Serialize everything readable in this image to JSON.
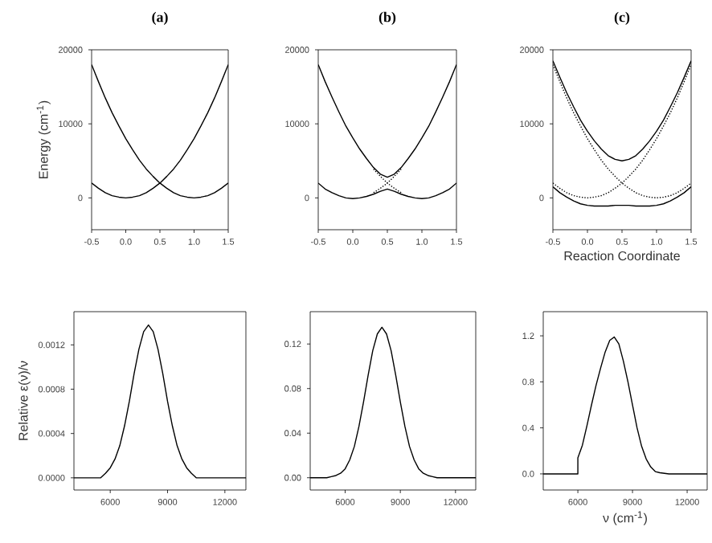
{
  "chart_data": [
    {
      "type": "line",
      "title": "(a)",
      "ylabel": "Energy (cm$^{-1}$)",
      "xlim": [
        -0.5,
        1.5
      ],
      "ylim": [
        -4300,
        20000
      ],
      "xticks": [
        {
          "value": -0.5,
          "label": "-0.5"
        },
        {
          "value": 0,
          "label": "0.0"
        },
        {
          "value": 0.5,
          "label": "0.5"
        },
        {
          "value": 1,
          "label": "1.0"
        },
        {
          "value": 1.5,
          "label": "1.5"
        }
      ],
      "yticks": [
        0,
        10000,
        20000
      ],
      "series": [
        {
          "color": "#000000",
          "line_style": "solid",
          "x": [
            -0.5,
            -0.4,
            -0.3,
            -0.2,
            -0.1,
            0,
            0.1,
            0.2,
            0.3,
            0.4,
            0.5,
            0.6,
            0.7,
            0.8,
            0.9,
            1.0,
            1.1,
            1.2,
            1.3,
            1.4,
            1.5
          ],
          "values": [
            2000,
            1300,
            700,
            300,
            100,
            0,
            100,
            300,
            700,
            1300,
            2000,
            2900,
            3900,
            5100,
            6500,
            8000,
            9700,
            11500,
            13500,
            15700,
            18000
          ]
        },
        {
          "color": "#000000",
          "line_style": "solid",
          "x": [
            -0.5,
            -0.4,
            -0.3,
            -0.2,
            -0.1,
            0,
            0.1,
            0.2,
            0.3,
            0.4,
            0.5,
            0.6,
            0.7,
            0.8,
            0.9,
            1.0,
            1.1,
            1.2,
            1.3,
            1.4,
            1.5
          ],
          "values": [
            18000,
            15700,
            13500,
            11500,
            9700,
            8000,
            6500,
            5100,
            3900,
            2900,
            2000,
            1300,
            700,
            300,
            100,
            0,
            100,
            300,
            700,
            1300,
            2000
          ]
        }
      ]
    },
    {
      "type": "line",
      "title": "(b)",
      "xlim": [
        -0.5,
        1.5
      ],
      "ylim": [
        -4300,
        20000
      ],
      "xticks": [
        {
          "value": -0.5,
          "label": "-0.5"
        },
        {
          "value": 0,
          "label": "0.0"
        },
        {
          "value": 0.5,
          "label": "0.5"
        },
        {
          "value": 1,
          "label": "1.0"
        },
        {
          "value": 1.5,
          "label": "1.5"
        }
      ],
      "yticks": [
        0,
        10000,
        20000
      ],
      "series": [
        {
          "color": "#000000",
          "line_style": "solid",
          "x": [
            -0.5,
            -0.4,
            -0.3,
            -0.2,
            -0.1,
            0,
            0.1,
            0.2,
            0.3,
            0.4,
            0.5,
            0.6,
            0.7,
            0.8,
            0.9,
            1.0,
            1.1,
            1.2,
            1.3,
            1.4,
            1.5
          ],
          "values": [
            2000,
            1200,
            700,
            300,
            0,
            -100,
            0,
            200,
            500,
            900,
            1200,
            900,
            500,
            200,
            0,
            -100,
            0,
            300,
            700,
            1200,
            2000
          ]
        },
        {
          "color": "#000000",
          "line_style": "solid",
          "x": [
            -0.5,
            -0.4,
            -0.3,
            -0.2,
            -0.1,
            0,
            0.1,
            0.2,
            0.3,
            0.4,
            0.5,
            0.6,
            0.7,
            0.8,
            0.9,
            1.0,
            1.1,
            1.2,
            1.3,
            1.4,
            1.5
          ],
          "values": [
            18000,
            15700,
            13600,
            11600,
            9700,
            8100,
            6600,
            5300,
            4100,
            3200,
            2800,
            3200,
            4100,
            5300,
            6600,
            8100,
            9700,
            11600,
            13600,
            15700,
            18000
          ]
        },
        {
          "color": "#000000",
          "line_style": "dotted",
          "x": [
            0.3,
            0.4,
            0.5,
            0.6,
            0.7
          ],
          "values": [
            700,
            1300,
            2000,
            2900,
            3900
          ]
        },
        {
          "color": "#000000",
          "line_style": "dotted",
          "x": [
            0.3,
            0.4,
            0.5,
            0.6,
            0.7
          ],
          "values": [
            3900,
            2900,
            2000,
            1300,
            700
          ]
        }
      ]
    },
    {
      "type": "line",
      "title": "(c)",
      "xlabel": "Reaction Coordinate",
      "xlim": [
        -0.5,
        1.5
      ],
      "ylim": [
        -4300,
        20000
      ],
      "xticks": [
        {
          "value": -0.5,
          "label": "-0.5"
        },
        {
          "value": 0,
          "label": "0.0"
        },
        {
          "value": 0.5,
          "label": "0.5"
        },
        {
          "value": 1,
          "label": "1.0"
        },
        {
          "value": 1.5,
          "label": "1.5"
        }
      ],
      "yticks": [
        0,
        10000,
        20000
      ],
      "series": [
        {
          "color": "#000000",
          "line_style": "dotted",
          "x": [
            -0.5,
            -0.4,
            -0.3,
            -0.2,
            -0.1,
            0,
            0.1,
            0.2,
            0.3,
            0.4,
            0.5,
            0.6,
            0.7,
            0.8,
            0.9,
            1.0,
            1.1,
            1.2,
            1.3,
            1.4,
            1.5
          ],
          "values": [
            2000,
            1300,
            700,
            300,
            100,
            0,
            100,
            300,
            700,
            1300,
            2000,
            2900,
            3900,
            5100,
            6500,
            8000,
            9700,
            11500,
            13500,
            15700,
            18000
          ]
        },
        {
          "color": "#000000",
          "line_style": "dotted",
          "x": [
            -0.5,
            -0.4,
            -0.3,
            -0.2,
            -0.1,
            0,
            0.1,
            0.2,
            0.3,
            0.4,
            0.5,
            0.6,
            0.7,
            0.8,
            0.9,
            1.0,
            1.1,
            1.2,
            1.3,
            1.4,
            1.5
          ],
          "values": [
            18000,
            15700,
            13500,
            11500,
            9700,
            8000,
            6500,
            5100,
            3900,
            2900,
            2000,
            1300,
            700,
            300,
            100,
            0,
            100,
            300,
            700,
            1300,
            2000
          ]
        },
        {
          "color": "#000000",
          "line_style": "solid",
          "x": [
            -0.5,
            -0.4,
            -0.3,
            -0.2,
            -0.1,
            0,
            0.1,
            0.2,
            0.3,
            0.4,
            0.5,
            0.6,
            0.7,
            0.8,
            0.9,
            1.0,
            1.1,
            1.2,
            1.3,
            1.4,
            1.5
          ],
          "values": [
            1500,
            700,
            100,
            -400,
            -800,
            -1000,
            -1100,
            -1100,
            -1100,
            -1000,
            -1000,
            -1000,
            -1100,
            -1100,
            -1100,
            -1000,
            -800,
            -400,
            100,
            700,
            1500
          ]
        },
        {
          "color": "#000000",
          "line_style": "solid",
          "x": [
            -0.5,
            -0.4,
            -0.3,
            -0.2,
            -0.1,
            0,
            0.1,
            0.2,
            0.3,
            0.4,
            0.5,
            0.6,
            0.7,
            0.8,
            0.9,
            1.0,
            1.1,
            1.2,
            1.3,
            1.4,
            1.5
          ],
          "values": [
            18500,
            16300,
            14200,
            12300,
            10500,
            9000,
            7700,
            6600,
            5700,
            5200,
            5000,
            5200,
            5700,
            6600,
            7700,
            9000,
            10500,
            12300,
            14200,
            16300,
            18500
          ]
        }
      ]
    },
    {
      "type": "line",
      "ylabel": "Relative ε(ν)/ν",
      "xlim": [
        4100,
        13100
      ],
      "ylim": [
        -0.00011,
        0.0015
      ],
      "xticks": [
        6000,
        9000,
        12000
      ],
      "yticks": [
        {
          "value": 0,
          "label": "0.0000"
        },
        {
          "value": 0.0004,
          "label": "0.0004"
        },
        {
          "value": 0.0008,
          "label": "0.0008"
        },
        {
          "value": 0.0012,
          "label": "0.0012"
        }
      ],
      "series": [
        {
          "color": "#000000",
          "line_style": "solid",
          "x": [
            4100,
            5000,
            5250,
            5500,
            5750,
            6000,
            6250,
            6500,
            6750,
            7000,
            7250,
            7500,
            7750,
            8000,
            8250,
            8500,
            8750,
            9000,
            9250,
            9500,
            9750,
            10000,
            10250,
            10500,
            10750,
            11000,
            13100
          ],
          "values": [
            0,
            0,
            0,
            0,
            4e-05,
            9e-05,
            0.00017,
            0.00029,
            0.00047,
            0.00069,
            0.00094,
            0.00116,
            0.00132,
            0.00138,
            0.00132,
            0.00116,
            0.00094,
            0.00069,
            0.00047,
            0.00029,
            0.00017,
            9e-05,
            4e-05,
            0,
            0,
            0,
            0
          ]
        }
      ]
    },
    {
      "type": "line",
      "xlim": [
        4100,
        13100
      ],
      "ylim": [
        -0.011,
        0.149
      ],
      "xticks": [
        6000,
        9000,
        12000
      ],
      "yticks": [
        {
          "value": 0,
          "label": "0.00"
        },
        {
          "value": 0.04,
          "label": "0.04"
        },
        {
          "value": 0.08,
          "label": "0.08"
        },
        {
          "value": 0.12,
          "label": "0.12"
        }
      ],
      "series": [
        {
          "color": "#000000",
          "line_style": "solid",
          "x": [
            4100,
            5000,
            5250,
            5500,
            5750,
            6000,
            6250,
            6500,
            6750,
            7000,
            7250,
            7500,
            7750,
            8000,
            8250,
            8500,
            8750,
            9000,
            9250,
            9500,
            9750,
            10000,
            10250,
            10500,
            10750,
            11000,
            13100
          ],
          "values": [
            0,
            0,
            0.001,
            0.002,
            0.004,
            0.008,
            0.016,
            0.028,
            0.046,
            0.068,
            0.092,
            0.114,
            0.129,
            0.135,
            0.129,
            0.114,
            0.092,
            0.068,
            0.046,
            0.028,
            0.016,
            0.008,
            0.004,
            0.002,
            0.001,
            0,
            0
          ]
        }
      ]
    },
    {
      "type": "line",
      "xlabel": "ν (cm$^{-1}$)",
      "xlim": [
        4100,
        13100
      ],
      "ylim": [
        -0.14,
        1.41
      ],
      "xticks": [
        6000,
        9000,
        12000
      ],
      "yticks": [
        {
          "value": 0,
          "label": "0.0"
        },
        {
          "value": 0.4,
          "label": "0.4"
        },
        {
          "value": 0.8,
          "label": "0.8"
        },
        {
          "value": 1.2,
          "label": "1.2"
        }
      ],
      "series": [
        {
          "color": "#000000",
          "line_style": "solid",
          "x": [
            4100,
            6000,
            6000,
            6250,
            6500,
            6750,
            7000,
            7250,
            7500,
            7750,
            8000,
            8250,
            8500,
            8750,
            9000,
            9250,
            9500,
            9750,
            10000,
            10250,
            10500,
            11000,
            13100
          ],
          "values": [
            0,
            0,
            0.14,
            0.25,
            0.42,
            0.6,
            0.77,
            0.92,
            1.06,
            1.16,
            1.19,
            1.13,
            0.98,
            0.8,
            0.6,
            0.4,
            0.24,
            0.13,
            0.06,
            0.02,
            0.01,
            0,
            0
          ]
        }
      ]
    }
  ]
}
